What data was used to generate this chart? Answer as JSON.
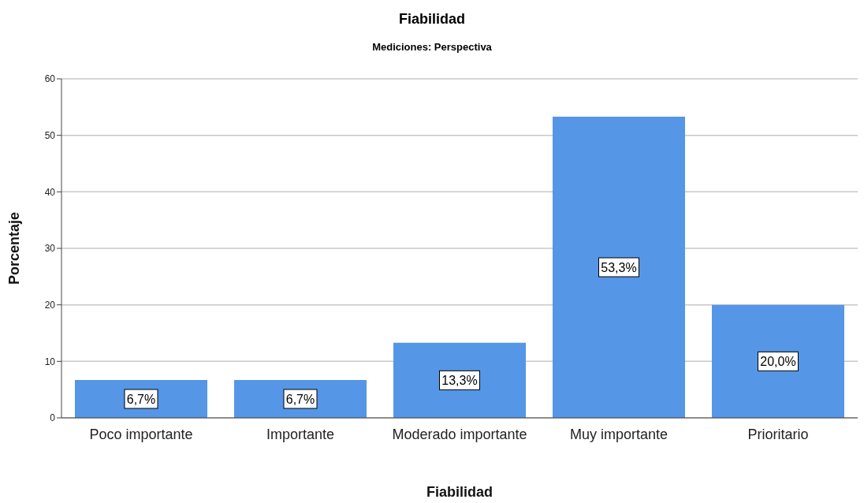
{
  "chart_data": {
    "type": "bar",
    "title": "Fiabilidad",
    "subtitle": "Mediciones: Perspectiva",
    "xlabel": "Fiabilidad",
    "ylabel": "Porcentaje",
    "categories": [
      "Poco importante",
      "Importante",
      "Moderado importante",
      "Muy importante",
      "Prioritario"
    ],
    "values": [
      6.7,
      6.7,
      13.3,
      53.3,
      20.0
    ],
    "value_labels": [
      "6,7%",
      "6,7%",
      "13,3%",
      "53,3%",
      "20,0%"
    ],
    "color": "#5596e6",
    "ylim": [
      0,
      60
    ],
    "yticks": [
      0,
      10,
      20,
      30,
      40,
      50,
      60
    ],
    "grid": "y"
  }
}
